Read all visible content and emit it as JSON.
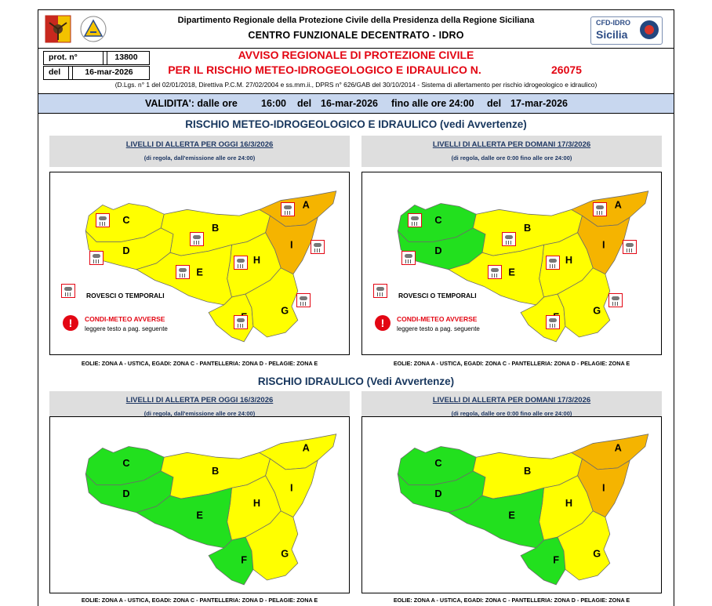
{
  "header": {
    "department": "Dipartimento Regionale della Protezione Civile della Presidenza della Regione Siciliana",
    "center": "CENTRO FUNZIONALE DECENTRATO - IDRO",
    "cfd_logo_line1": "CFD-IDRO",
    "cfd_logo_line2": "Sicilia"
  },
  "protocol": {
    "prot_label": "prot. n°",
    "prot_value": "13800",
    "del_label": "del",
    "del_value": "16-mar-2026"
  },
  "notice": {
    "title1": "AVVISO REGIONALE DI PROTEZIONE CIVILE",
    "title2": "PER IL RISCHIO METEO-IDROGEOLOGICO E IDRAULICO N.",
    "number": "26075",
    "law": "(D.Lgs. n° 1 del 02/01/2018, Direttiva P.C.M. 27/02/2004 e ss.mm.ii., DPRS n° 626/GAB del 30/10/2014 - Sistema di allertamento per rischio idrogeologico e idraulico)"
  },
  "validity": {
    "label": "VALIDITA': dalle ore",
    "from_time": "16:00",
    "del1": "del",
    "from_date": "16-mar-2026",
    "until": "fino alle ore 24:00",
    "del2": "del",
    "to_date": "17-mar-2026"
  },
  "sections": {
    "meteo_title": "RISCHIO METEO-IDROGEOLOGICO E IDRAULICO (vedi Avvertenze)",
    "idraulico_title": "RISCHIO IDRAULICO (Vedi Avvertenze)"
  },
  "panels": {
    "today_title": "LIVELLI DI ALLERTA PER OGGI 16/3/2026",
    "today_sub": "(di regola, dall'emissione alle ore 24:00)",
    "tomorrow_title": "LIVELLI DI ALLERTA PER DOMANI 17/3/2026",
    "tomorrow_sub": "(di regola, dalle ore 0:00 fino alle ore 24:00)",
    "islands_note": "EOLIE: ZONA A - USTICA, EGADI: ZONA C - PANTELLERIA: ZONA D - PELAGIE: ZONA E"
  },
  "legend": {
    "storms": "ROVESCI O TEMPORALI",
    "adverse": "CONDI-METEO AVVERSE",
    "adverse_sub": "leggere testo a pag. seguente"
  },
  "zone_labels": [
    "A",
    "B",
    "C",
    "D",
    "E",
    "F",
    "G",
    "H",
    "I"
  ],
  "colors": {
    "yellow": "#ffff00",
    "orange": "#f5b400",
    "green": "#22e01e",
    "validity_band": "#c8d7ef",
    "red_text": "#e30613"
  },
  "alert_levels": {
    "meteo_today": {
      "A": "orange",
      "B": "yellow",
      "C": "yellow",
      "D": "yellow",
      "E": "yellow",
      "F": "yellow",
      "G": "yellow",
      "H": "yellow",
      "I": "orange"
    },
    "meteo_tomorrow": {
      "A": "orange",
      "B": "yellow",
      "C": "green",
      "D": "green",
      "E": "yellow",
      "F": "yellow",
      "G": "yellow",
      "H": "yellow",
      "I": "orange"
    },
    "idraulico_today": {
      "A": "yellow",
      "B": "yellow",
      "C": "green",
      "D": "green",
      "E": "green",
      "F": "green",
      "G": "yellow",
      "H": "yellow",
      "I": "yellow"
    },
    "idraulico_tomorrow": {
      "A": "orange",
      "B": "yellow",
      "C": "green",
      "D": "green",
      "E": "green",
      "F": "green",
      "G": "yellow",
      "H": "yellow",
      "I": "orange"
    }
  }
}
